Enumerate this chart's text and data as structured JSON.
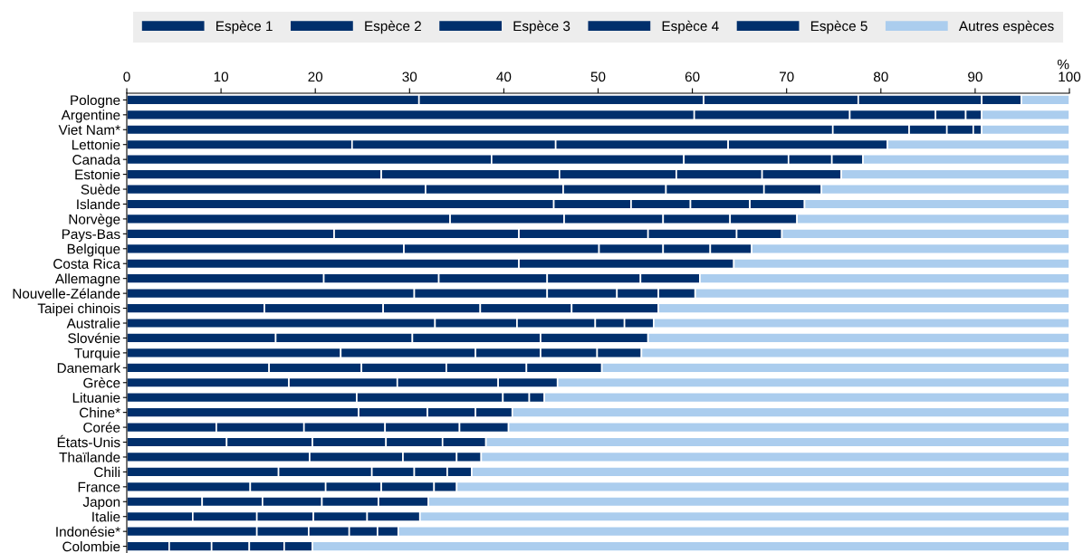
{
  "chart_data": {
    "type": "bar",
    "orientation": "horizontal",
    "stacked": true,
    "categories": [
      "Pologne",
      "Argentine",
      "Viet Nam*",
      "Lettonie",
      "Canada",
      "Estonie",
      "Suède",
      "Islande",
      "Norvège",
      "Pays-Bas",
      "Belgique",
      "Costa Rica",
      "Allemagne",
      "Nouvelle-Zélande",
      "Taipei chinois",
      "Australie",
      "Slovénie",
      "Turquie",
      "Danemark",
      "Grèce",
      "Lituanie",
      "Chine*",
      "Corée",
      "États-Unis",
      "Thaïlande",
      "Chili",
      "France",
      "Japon",
      "Italie",
      "Indonésie*",
      "Colombie"
    ],
    "series": [
      {
        "name": "Espèce 1",
        "color": "#002f6c",
        "values": [
          31.0,
          60.2,
          74.9,
          23.9,
          38.7,
          27.0,
          31.7,
          45.3,
          34.3,
          22.0,
          29.4,
          41.6,
          20.9,
          30.5,
          14.6,
          32.7,
          15.8,
          22.7,
          15.1,
          17.2,
          24.4,
          24.6,
          9.5,
          10.6,
          19.4,
          16.1,
          13.1,
          8.0,
          7.0,
          13.8,
          4.5
        ]
      },
      {
        "name": "Espèce 2",
        "color": "#002f6c",
        "values": [
          30.2,
          16.5,
          8.1,
          21.6,
          20.4,
          18.9,
          14.6,
          8.2,
          12.1,
          19.6,
          20.7,
          22.8,
          12.2,
          14.1,
          12.6,
          8.7,
          14.5,
          14.3,
          9.8,
          11.5,
          15.5,
          7.3,
          9.3,
          9.1,
          9.9,
          9.9,
          8.0,
          6.4,
          6.8,
          5.5,
          4.5
        ]
      },
      {
        "name": "Espèce 3",
        "color": "#002f6c",
        "values": [
          16.4,
          9.1,
          4.0,
          18.3,
          11.1,
          12.4,
          10.9,
          6.3,
          10.5,
          13.7,
          6.8,
          null,
          11.5,
          7.4,
          10.3,
          8.3,
          13.6,
          6.9,
          9.0,
          10.7,
          2.8,
          5.1,
          8.6,
          7.8,
          5.7,
          4.5,
          5.9,
          6.3,
          6.0,
          4.3,
          4.0
        ]
      },
      {
        "name": "Espèce 4",
        "color": "#002f6c",
        "values": [
          13.1,
          3.2,
          2.8,
          16.9,
          4.6,
          9.1,
          10.4,
          6.3,
          7.1,
          9.4,
          5.0,
          null,
          9.9,
          4.4,
          9.7,
          3.1,
          11.4,
          6.0,
          8.5,
          6.3,
          1.6,
          3.9,
          7.9,
          6.0,
          2.6,
          3.5,
          5.6,
          6.0,
          5.7,
          3.0,
          3.7
        ]
      },
      {
        "name": "Espèce 5",
        "color": "#002f6c",
        "values": [
          4.2,
          1.7,
          0.9,
          null,
          3.3,
          8.4,
          6.1,
          5.8,
          7.1,
          4.8,
          4.4,
          null,
          6.3,
          3.9,
          9.2,
          3.1,
          null,
          4.7,
          8.0,
          null,
          null,
          null,
          5.2,
          4.6,
          null,
          2.6,
          2.4,
          5.3,
          5.6,
          2.2,
          3.0
        ]
      },
      {
        "name": "Autres espèces",
        "color": "#abcdee",
        "values": [
          5.1,
          9.3,
          9.3,
          19.3,
          21.9,
          24.2,
          26.3,
          28.1,
          28.9,
          30.5,
          33.7,
          35.6,
          39.2,
          39.7,
          43.6,
          44.1,
          44.7,
          45.4,
          49.6,
          54.3,
          55.7,
          59.1,
          59.5,
          61.9,
          62.4,
          63.4,
          65.0,
          68.0,
          68.9,
          71.2,
          80.3
        ]
      }
    ],
    "xlabel": "%",
    "xlim": [
      0,
      100
    ],
    "xticks": [
      0,
      10,
      20,
      30,
      40,
      50,
      60,
      70,
      80,
      90,
      100
    ],
    "legend": "top"
  }
}
